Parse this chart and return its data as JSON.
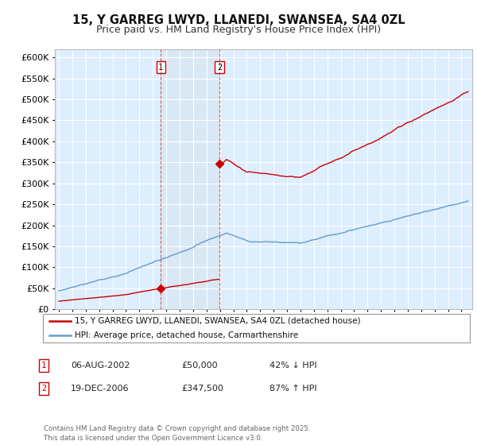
{
  "title": "15, Y GARREG LWYD, LLANEDI, SWANSEA, SA4 0ZL",
  "subtitle": "Price paid vs. HM Land Registry's House Price Index (HPI)",
  "ylim": [
    0,
    620000
  ],
  "xlim_start": 1994.7,
  "xlim_end": 2025.8,
  "legend_line1": "15, Y GARREG LWYD, LLANEDI, SWANSEA, SA4 0ZL (detached house)",
  "legend_line2": "HPI: Average price, detached house, Carmarthenshire",
  "annotation1_date": "06-AUG-2002",
  "annotation1_price": "£50,000",
  "annotation1_hpi": "42% ↓ HPI",
  "annotation2_date": "19-DEC-2006",
  "annotation2_price": "£347,500",
  "annotation2_hpi": "87% ↑ HPI",
  "footer": "Contains HM Land Registry data © Crown copyright and database right 2025.\nThis data is licensed under the Open Government Licence v3.0.",
  "sale1_x": 2002.595,
  "sale1_y": 50000,
  "sale2_x": 2006.963,
  "sale2_y": 347500,
  "vline1_x": 2002.595,
  "vline2_x": 2006.963,
  "red_color": "#cc0000",
  "blue_color": "#6699cc",
  "shade_color": "#d8e8f5",
  "background_color": "#ddeeff",
  "grid_color": "#ffffff",
  "title_fontsize": 10.5,
  "subtitle_fontsize": 9,
  "tick_fontsize": 8
}
